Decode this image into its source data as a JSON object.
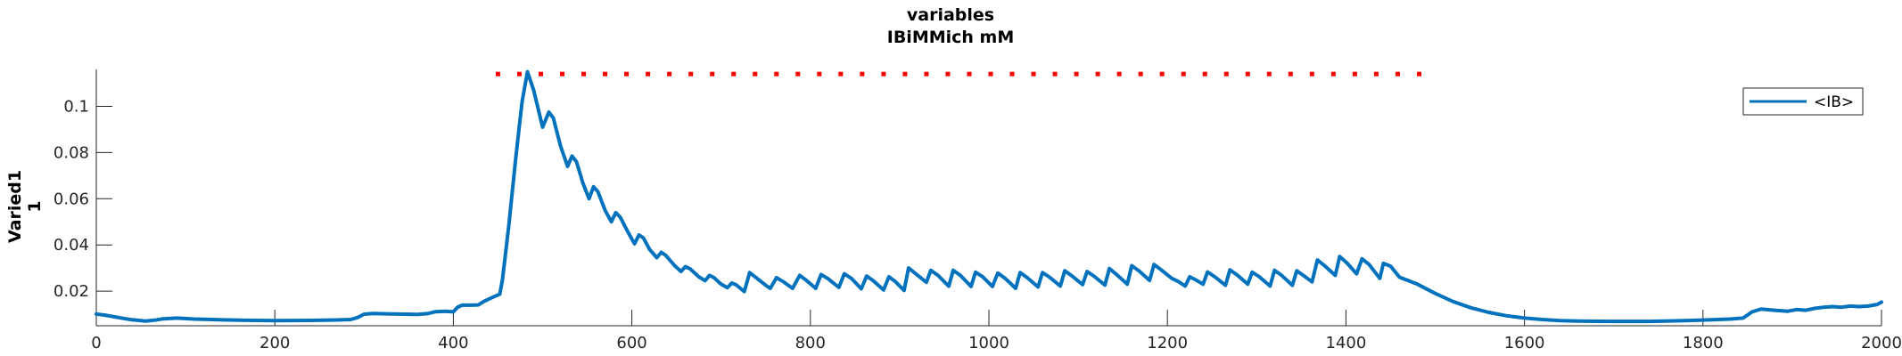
{
  "chart_data": {
    "type": "line",
    "title_line1": "variables",
    "title_line2": "IBiMMich mM",
    "ylabel_line1": "Varied1",
    "ylabel_line2": "1",
    "xlim": [
      0,
      2000
    ],
    "ylim": [
      0.005,
      0.116
    ],
    "xticks": [
      0,
      200,
      400,
      600,
      800,
      1000,
      1200,
      1400,
      1600,
      1800,
      2000
    ],
    "yticks": [
      0.02,
      0.04,
      0.06,
      0.08,
      0.1
    ],
    "ytick_labels": [
      "0.02",
      "0.04",
      "0.06",
      "0.08",
      "0.1"
    ],
    "legend_position": "top-right",
    "grid": false,
    "series": [
      {
        "name": "<IB>",
        "color": "#0072BD",
        "points": [
          [
            0,
            0.0101
          ],
          [
            10,
            0.0096
          ],
          [
            20,
            0.0089
          ],
          [
            30,
            0.0082
          ],
          [
            40,
            0.0076
          ],
          [
            50,
            0.0072
          ],
          [
            55,
            0.007
          ],
          [
            65,
            0.0074
          ],
          [
            75,
            0.008
          ],
          [
            90,
            0.0083
          ],
          [
            110,
            0.0079
          ],
          [
            130,
            0.0077
          ],
          [
            160,
            0.0074
          ],
          [
            200,
            0.0072
          ],
          [
            240,
            0.0073
          ],
          [
            270,
            0.0075
          ],
          [
            285,
            0.0077
          ],
          [
            293,
            0.0086
          ],
          [
            300,
            0.01
          ],
          [
            310,
            0.0103
          ],
          [
            330,
            0.0101
          ],
          [
            360,
            0.0099
          ],
          [
            372,
            0.0103
          ],
          [
            380,
            0.0111
          ],
          [
            392,
            0.0113
          ],
          [
            400,
            0.011
          ],
          [
            405,
            0.0131
          ],
          [
            410,
            0.0139
          ],
          [
            420,
            0.0139
          ],
          [
            428,
            0.014
          ],
          [
            434,
            0.0155
          ],
          [
            445,
            0.0175
          ],
          [
            452,
            0.0187
          ],
          [
            455,
            0.025
          ],
          [
            462,
            0.048
          ],
          [
            470,
            0.078
          ],
          [
            477,
            0.102
          ],
          [
            483,
            0.115
          ],
          [
            490,
            0.107
          ],
          [
            500,
            0.091
          ],
          [
            507,
            0.0975
          ],
          [
            512,
            0.095
          ],
          [
            520,
            0.083
          ],
          [
            528,
            0.074
          ],
          [
            533,
            0.0785
          ],
          [
            538,
            0.076
          ],
          [
            545,
            0.067
          ],
          [
            552,
            0.06
          ],
          [
            557,
            0.0652
          ],
          [
            562,
            0.063
          ],
          [
            570,
            0.055
          ],
          [
            577,
            0.05
          ],
          [
            582,
            0.054
          ],
          [
            587,
            0.052
          ],
          [
            595,
            0.046
          ],
          [
            603,
            0.0405
          ],
          [
            608,
            0.0443
          ],
          [
            613,
            0.043
          ],
          [
            620,
            0.038
          ],
          [
            628,
            0.0345
          ],
          [
            633,
            0.0368
          ],
          [
            638,
            0.0355
          ],
          [
            648,
            0.031
          ],
          [
            655,
            0.0285
          ],
          [
            660,
            0.0306
          ],
          [
            665,
            0.0297
          ],
          [
            675,
            0.0262
          ],
          [
            682,
            0.0245
          ],
          [
            687,
            0.0268
          ],
          [
            692,
            0.0258
          ],
          [
            700,
            0.023
          ],
          [
            707,
            0.0215
          ],
          [
            712,
            0.0235
          ],
          [
            717,
            0.0227
          ],
          [
            726,
            0.0198
          ],
          [
            732,
            0.028
          ],
          [
            740,
            0.0256
          ],
          [
            750,
            0.0225
          ],
          [
            755,
            0.0212
          ],
          [
            762,
            0.0258
          ],
          [
            770,
            0.024
          ],
          [
            780,
            0.0212
          ],
          [
            788,
            0.0268
          ],
          [
            795,
            0.0248
          ],
          [
            806,
            0.0212
          ],
          [
            812,
            0.0272
          ],
          [
            820,
            0.0253
          ],
          [
            832,
            0.0216
          ],
          [
            838,
            0.0275
          ],
          [
            846,
            0.0255
          ],
          [
            857,
            0.021
          ],
          [
            863,
            0.0265
          ],
          [
            870,
            0.0246
          ],
          [
            882,
            0.0205
          ],
          [
            888,
            0.0262
          ],
          [
            895,
            0.0242
          ],
          [
            905,
            0.0203
          ],
          [
            910,
            0.03
          ],
          [
            918,
            0.0275
          ],
          [
            930,
            0.0238
          ],
          [
            935,
            0.029
          ],
          [
            943,
            0.0268
          ],
          [
            955,
            0.0221
          ],
          [
            960,
            0.029
          ],
          [
            968,
            0.0268
          ],
          [
            980,
            0.022
          ],
          [
            985,
            0.0282
          ],
          [
            993,
            0.0262
          ],
          [
            1004,
            0.022
          ],
          [
            1010,
            0.0278
          ],
          [
            1018,
            0.0256
          ],
          [
            1030,
            0.0212
          ],
          [
            1035,
            0.028
          ],
          [
            1043,
            0.0258
          ],
          [
            1055,
            0.0218
          ],
          [
            1060,
            0.028
          ],
          [
            1068,
            0.026
          ],
          [
            1080,
            0.0222
          ],
          [
            1085,
            0.0288
          ],
          [
            1093,
            0.0266
          ],
          [
            1105,
            0.0228
          ],
          [
            1110,
            0.0285
          ],
          [
            1118,
            0.0264
          ],
          [
            1130,
            0.0226
          ],
          [
            1135,
            0.0298
          ],
          [
            1143,
            0.0272
          ],
          [
            1155,
            0.023
          ],
          [
            1160,
            0.031
          ],
          [
            1168,
            0.0288
          ],
          [
            1180,
            0.0246
          ],
          [
            1185,
            0.0315
          ],
          [
            1193,
            0.0292
          ],
          [
            1205,
            0.0255
          ],
          [
            1212,
            0.0242
          ],
          [
            1220,
            0.0222
          ],
          [
            1225,
            0.0262
          ],
          [
            1232,
            0.0248
          ],
          [
            1240,
            0.023
          ],
          [
            1245,
            0.0283
          ],
          [
            1253,
            0.0262
          ],
          [
            1265,
            0.0225
          ],
          [
            1270,
            0.0292
          ],
          [
            1278,
            0.027
          ],
          [
            1290,
            0.023
          ],
          [
            1295,
            0.0282
          ],
          [
            1303,
            0.0262
          ],
          [
            1315,
            0.0222
          ],
          [
            1320,
            0.029
          ],
          [
            1328,
            0.0268
          ],
          [
            1340,
            0.0225
          ],
          [
            1345,
            0.0288
          ],
          [
            1353,
            0.0266
          ],
          [
            1362,
            0.024
          ],
          [
            1368,
            0.0335
          ],
          [
            1376,
            0.031
          ],
          [
            1388,
            0.0268
          ],
          [
            1393,
            0.035
          ],
          [
            1401,
            0.0322
          ],
          [
            1412,
            0.0275
          ],
          [
            1418,
            0.034
          ],
          [
            1426,
            0.0315
          ],
          [
            1438,
            0.0255
          ],
          [
            1442,
            0.032
          ],
          [
            1450,
            0.0308
          ],
          [
            1460,
            0.026
          ],
          [
            1480,
            0.023
          ],
          [
            1500,
            0.019
          ],
          [
            1520,
            0.0155
          ],
          [
            1540,
            0.0128
          ],
          [
            1560,
            0.0108
          ],
          [
            1580,
            0.0093
          ],
          [
            1600,
            0.0083
          ],
          [
            1620,
            0.0077
          ],
          [
            1640,
            0.0072
          ],
          [
            1660,
            0.007
          ],
          [
            1700,
            0.0069
          ],
          [
            1740,
            0.0069
          ],
          [
            1780,
            0.0072
          ],
          [
            1810,
            0.0076
          ],
          [
            1830,
            0.0079
          ],
          [
            1845,
            0.0083
          ],
          [
            1855,
            0.011
          ],
          [
            1865,
            0.0122
          ],
          [
            1880,
            0.0117
          ],
          [
            1895,
            0.0113
          ],
          [
            1905,
            0.012
          ],
          [
            1915,
            0.0117
          ],
          [
            1925,
            0.0125
          ],
          [
            1935,
            0.013
          ],
          [
            1945,
            0.0133
          ],
          [
            1955,
            0.013
          ],
          [
            1965,
            0.0135
          ],
          [
            1975,
            0.0133
          ],
          [
            1985,
            0.0135
          ],
          [
            1995,
            0.0142
          ],
          [
            2000,
            0.0152
          ]
        ]
      },
      {
        "color": "#FF0000",
        "marker": "dots",
        "y": 0.114,
        "x": [
          450,
          474,
          498,
          522,
          546,
          570,
          594,
          618,
          642,
          666,
          690,
          714,
          738,
          762,
          786,
          810,
          834,
          858,
          882,
          906,
          930,
          954,
          978,
          1002,
          1026,
          1050,
          1074,
          1098,
          1122,
          1146,
          1170,
          1194,
          1218,
          1242,
          1266,
          1290,
          1314,
          1338,
          1362,
          1386,
          1410,
          1434,
          1458,
          1482
        ]
      }
    ]
  }
}
